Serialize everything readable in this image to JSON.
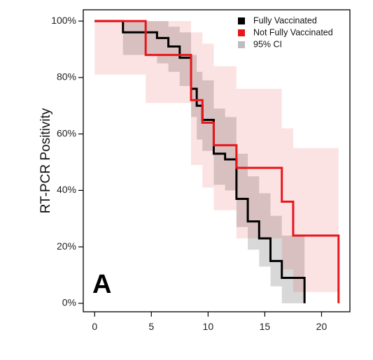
{
  "chart_data": {
    "type": "line",
    "step": true,
    "panel_label": "A",
    "ylabel": "RT-PCR Positivity",
    "xlabel": "",
    "xlim": [
      -1,
      22.5
    ],
    "ylim": [
      -3,
      104
    ],
    "xticks": [
      0,
      5,
      10,
      15,
      20
    ],
    "xtick_labels": [
      "0",
      "5",
      "10",
      "15",
      "20"
    ],
    "yticks": [
      0,
      20,
      40,
      60,
      80,
      100
    ],
    "ytick_labels": [
      "0%",
      "20%",
      "40%",
      "60%",
      "80%",
      "100%"
    ],
    "grid": false,
    "legend_position": "top-right",
    "legend": [
      {
        "label": "Fully Vaccinated",
        "color": "#000000"
      },
      {
        "label": "Not Fully Vaccinated",
        "color": "#e8161b"
      },
      {
        "label": "95% CI",
        "color": "#bdbdbd"
      }
    ],
    "series": [
      {
        "name": "Fully Vaccinated",
        "color": "#000000",
        "x": [
          0,
          2.5,
          5.5,
          6.5,
          7.5,
          8.5,
          9,
          9.5,
          10.5,
          11.5,
          12.5,
          13.5,
          14.5,
          15.5,
          16.5,
          18.5
        ],
        "y": [
          100,
          96,
          94,
          91,
          87,
          76,
          70,
          65,
          53,
          51,
          37,
          29,
          23,
          15,
          9,
          0
        ],
        "ci_lower": [
          100,
          88,
          85,
          82,
          77,
          66,
          58,
          54,
          42,
          40,
          27,
          19,
          13,
          6,
          0,
          0
        ],
        "ci_upper": [
          100,
          100,
          100,
          98,
          96,
          88,
          82,
          79,
          69,
          66,
          53,
          45,
          39,
          31,
          24,
          0
        ]
      },
      {
        "name": "Not Fully Vaccinated",
        "color": "#e8161b",
        "x": [
          0,
          4.5,
          8.5,
          9.5,
          10.5,
          12.5,
          16.5,
          17.5,
          21.5
        ],
        "y": [
          100,
          88,
          72,
          64,
          56,
          48,
          36,
          24,
          0
        ],
        "ci_lower": [
          81,
          71,
          49,
          41,
          33,
          23,
          12,
          4,
          0
        ],
        "ci_upper": [
          100,
          100,
          96,
          92,
          84,
          76,
          62,
          55,
          0
        ]
      }
    ]
  }
}
